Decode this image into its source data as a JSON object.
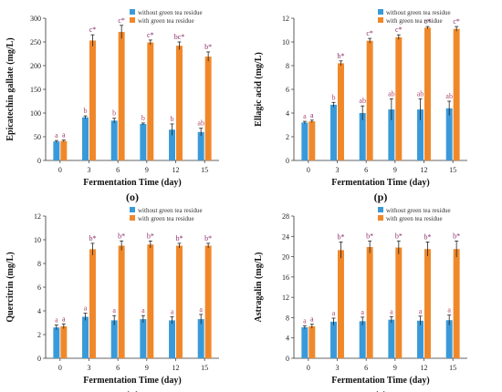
{
  "colors": {
    "without": "#3a9ad9",
    "with": "#f0882a",
    "letters_without": "#b0456a",
    "letters_with": "#8a2a6a",
    "axis": "#333333"
  },
  "chart_data": [
    {
      "type": "bar",
      "panel_label": "(o)",
      "xlabel": "Fermentation Time (day)",
      "ylabel": "Epicatechin gallate (mg/L)",
      "categories": [
        "0",
        "3",
        "6",
        "9",
        "12",
        "15"
      ],
      "ylim": [
        0,
        300
      ],
      "yticks": [
        0,
        50,
        100,
        150,
        200,
        250,
        300
      ],
      "grid": false,
      "legend_position": "top-right",
      "series": [
        {
          "name": "without green tea residue",
          "values": [
            40,
            91,
            84,
            77,
            65,
            60
          ],
          "errors": [
            2,
            3,
            5,
            2,
            12,
            8
          ],
          "labels": [
            "a",
            "b",
            "b",
            "b",
            "b",
            "ab"
          ]
        },
        {
          "name": "with green tea residue",
          "values": [
            41,
            253,
            271,
            249,
            242,
            219
          ],
          "errors": [
            2,
            12,
            14,
            5,
            8,
            10
          ],
          "labels": [
            "a",
            "c*",
            "c*",
            "c*",
            "bc*",
            "b*"
          ]
        }
      ]
    },
    {
      "type": "bar",
      "panel_label": "(p)",
      "xlabel": "Fermentation Time (day)",
      "ylabel": "Ellagic acid (mg/L)",
      "categories": [
        "0",
        "3",
        "6",
        "9",
        "12",
        "15"
      ],
      "ylim": [
        0,
        12
      ],
      "yticks": [
        0,
        2,
        4,
        6,
        8,
        10,
        12
      ],
      "grid": false,
      "legend_position": "top-right",
      "series": [
        {
          "name": "without green tea residue",
          "values": [
            3.2,
            4.7,
            4.0,
            4.3,
            4.3,
            4.4
          ],
          "errors": [
            0.1,
            0.2,
            0.6,
            0.9,
            0.9,
            0.6
          ],
          "labels": [
            "a",
            "b",
            "ab",
            "ab",
            "ab",
            "ab"
          ]
        },
        {
          "name": "with green tea residue",
          "values": [
            3.3,
            8.2,
            10.1,
            10.4,
            11.2,
            11.1
          ],
          "errors": [
            0.1,
            0.2,
            0.2,
            0.2,
            0.1,
            0.2
          ],
          "labels": [
            "a",
            "b*",
            "c*",
            "c*",
            "c*",
            "c*"
          ]
        }
      ]
    },
    {
      "type": "bar",
      "panel_label": "(q)",
      "xlabel": "Fermentation Time (day)",
      "ylabel": "Quercitrin (mg/L)",
      "categories": [
        "0",
        "3",
        "6",
        "9",
        "12",
        "15"
      ],
      "ylim": [
        0,
        12
      ],
      "yticks": [
        0,
        2,
        4,
        6,
        8,
        10,
        12
      ],
      "grid": false,
      "legend_position": "top-right",
      "series": [
        {
          "name": "without green tea residue",
          "values": [
            2.6,
            3.5,
            3.2,
            3.3,
            3.2,
            3.3
          ],
          "errors": [
            0.2,
            0.3,
            0.4,
            0.3,
            0.3,
            0.4
          ],
          "labels": [
            "a",
            "a",
            "a",
            "a",
            "a",
            "a"
          ]
        },
        {
          "name": "with green tea residue",
          "values": [
            2.7,
            9.2,
            9.5,
            9.6,
            9.5,
            9.5
          ],
          "errors": [
            0.2,
            0.5,
            0.4,
            0.3,
            0.2,
            0.2
          ],
          "labels": [
            "a",
            "b*",
            "b*",
            "b*",
            "b*",
            "b*"
          ]
        }
      ]
    },
    {
      "type": "bar",
      "panel_label": "(r)",
      "xlabel": "Fermentation Time (day)",
      "ylabel": "Astragalin (mg/L)",
      "categories": [
        "0",
        "3",
        "6",
        "9",
        "12",
        "15"
      ],
      "ylim": [
        0,
        28
      ],
      "yticks": [
        0,
        4,
        8,
        12,
        16,
        20,
        24,
        28
      ],
      "grid": false,
      "legend_position": "top-right",
      "series": [
        {
          "name": "without green tea residue",
          "values": [
            6.1,
            7.2,
            7.3,
            7.6,
            7.4,
            7.5
          ],
          "errors": [
            0.3,
            0.7,
            0.8,
            0.6,
            0.9,
            1.0
          ],
          "labels": [
            "a",
            "a",
            "a",
            "a",
            "a",
            "a"
          ]
        },
        {
          "name": "with green tea residue",
          "values": [
            6.3,
            21.3,
            21.9,
            21.8,
            21.5,
            21.5
          ],
          "errors": [
            0.4,
            1.6,
            1.2,
            1.3,
            1.4,
            1.6
          ],
          "labels": [
            "a",
            "b*",
            "b*",
            "b*",
            "b*",
            "b*"
          ]
        }
      ]
    }
  ]
}
